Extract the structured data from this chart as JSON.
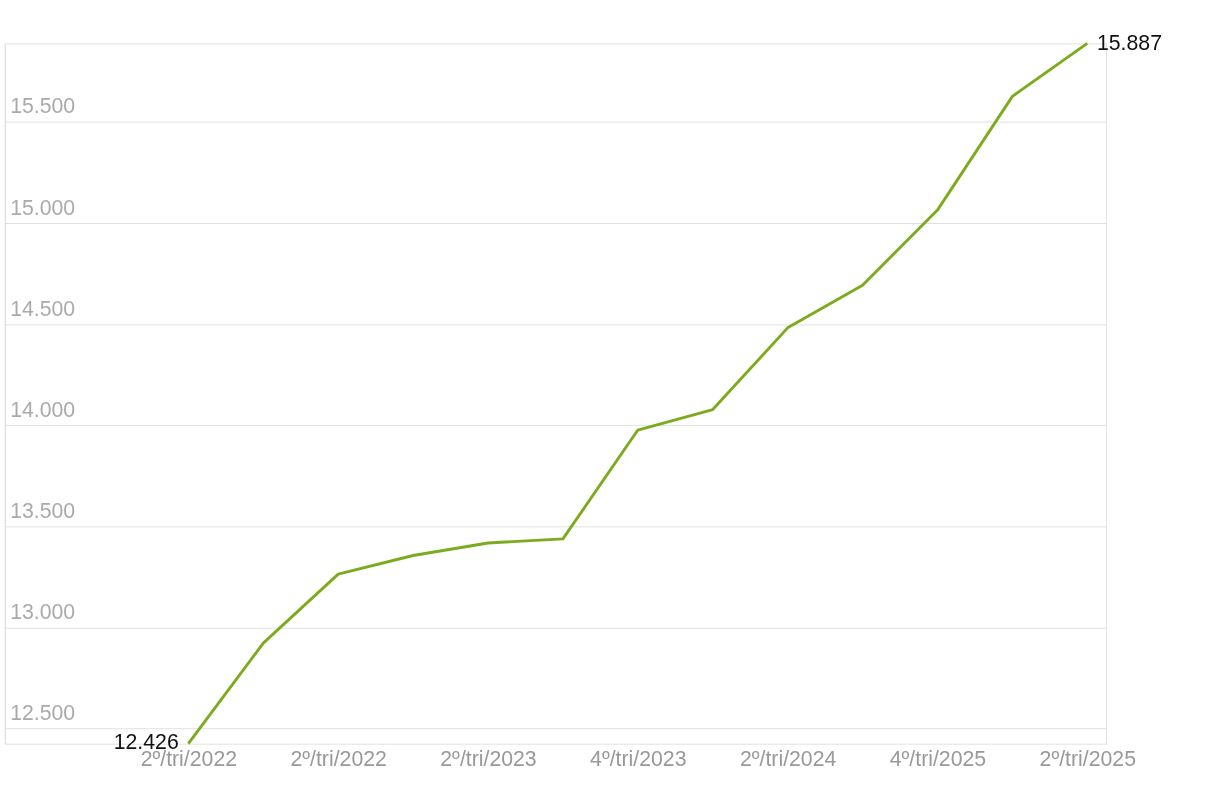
{
  "chart_data": {
    "type": "line",
    "categories": [
      "2º/tri/2022",
      null,
      "2º/tri/2022",
      null,
      "2º/tri/2023",
      null,
      "4º/tri/2023",
      null,
      "2º/tri/2024",
      null,
      "4º/tri/2025",
      null,
      "2º/tri/2025"
    ],
    "series": [
      {
        "color": "#7cab1e",
        "values": [
          12426,
          12923,
          13264,
          13356,
          13418,
          13438,
          13976,
          14077,
          14481,
          14692,
          15063,
          15625,
          15887
        ],
        "value_labels": [
          "12.426",
          null,
          null,
          null,
          null,
          null,
          null,
          null,
          null,
          null,
          null,
          null,
          "15.887"
        ]
      }
    ],
    "yticks": [
      {
        "value": 12500,
        "label": "12.500"
      },
      {
        "value": 13000,
        "label": "13.000"
      },
      {
        "value": 13500,
        "label": "13.500"
      },
      {
        "value": 14000,
        "label": "14.000"
      },
      {
        "value": 14500,
        "label": "14.500"
      },
      {
        "value": 15000,
        "label": "15.000"
      },
      {
        "value": 15500,
        "label": "15.500"
      }
    ],
    "ylim": [
      12426,
      15887
    ],
    "grid": "y",
    "marker": "none",
    "line_style": "solid"
  }
}
